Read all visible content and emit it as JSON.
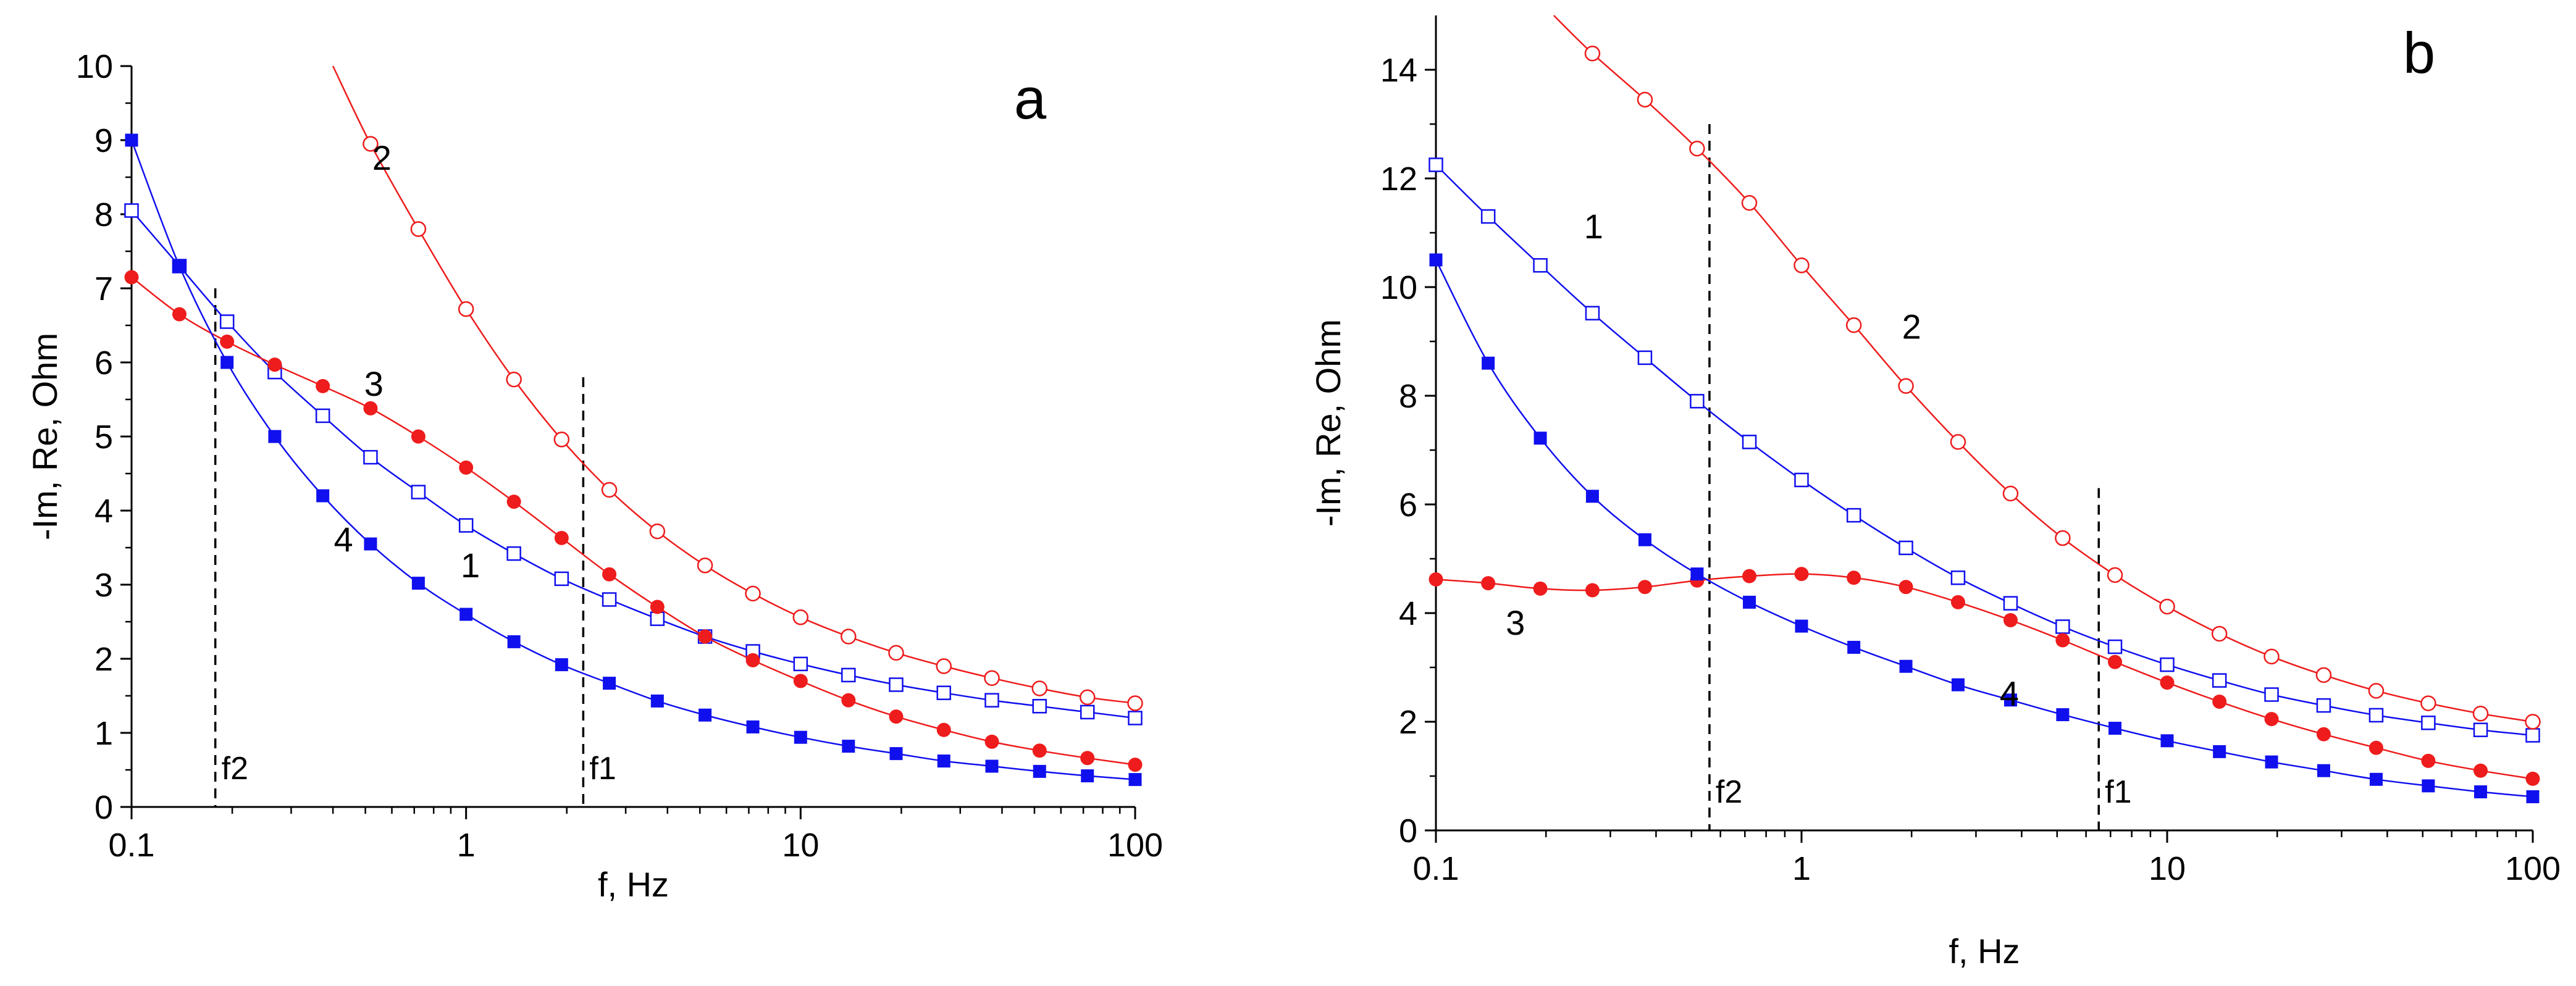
{
  "chart_data": [
    {
      "type": "line",
      "panel_label": "a",
      "xlabel": "f, Hz",
      "ylabel": "-Im, Re, Ohm",
      "x_scale": "log",
      "xlim": [
        0.1,
        100
      ],
      "ylim": [
        0,
        10
      ],
      "x_ticks": [
        0.1,
        1,
        10,
        100
      ],
      "x_tick_labels": [
        "0.1",
        "1",
        "10",
        "100"
      ],
      "y_ticks": [
        0,
        1,
        2,
        3,
        4,
        5,
        6,
        7,
        8,
        9,
        10
      ],
      "y_tick_labels": [
        "0",
        "1",
        "2",
        "3",
        "4",
        "5",
        "6",
        "7",
        "8",
        "9",
        "10"
      ],
      "grid": false,
      "legend": "none",
      "series": [
        {
          "label": "1",
          "color": "#1010ee",
          "marker": "square-open",
          "x": [
            0.1,
            0.139,
            0.193,
            0.268,
            0.373,
            0.518,
            0.72,
            1.0,
            1.39,
            1.93,
            2.68,
            3.73,
            5.18,
            7.2,
            10,
            13.9,
            19.3,
            26.8,
            37.3,
            51.8,
            72,
            100
          ],
          "y": [
            8.05,
            7.3,
            6.55,
            5.87,
            5.28,
            4.72,
            4.25,
            3.8,
            3.42,
            3.08,
            2.8,
            2.54,
            2.3,
            2.1,
            1.93,
            1.78,
            1.65,
            1.54,
            1.44,
            1.36,
            1.28,
            1.2
          ]
        },
        {
          "label": "2",
          "color": "#ee1c1c",
          "marker": "circle-open",
          "x": [
            0.518,
            0.72,
            1.0,
            1.39,
            1.93,
            2.68,
            3.73,
            5.18,
            7.2,
            10,
            13.9,
            19.3,
            26.8,
            37.3,
            51.8,
            72,
            100
          ],
          "y": [
            8.95,
            7.8,
            6.72,
            5.77,
            4.96,
            4.28,
            3.72,
            3.26,
            2.88,
            2.56,
            2.3,
            2.08,
            1.9,
            1.74,
            1.6,
            1.48,
            1.4
          ],
          "curve_start": [
            0.4,
            10
          ]
        },
        {
          "label": "3",
          "color": "#ee1c1c",
          "marker": "circle-filled",
          "x": [
            0.1,
            0.139,
            0.193,
            0.268,
            0.373,
            0.518,
            0.72,
            1.0,
            1.39,
            1.93,
            2.68,
            3.73,
            5.18,
            7.2,
            10,
            13.9,
            19.3,
            26.8,
            37.3,
            51.8,
            72,
            100
          ],
          "y": [
            7.15,
            6.65,
            6.28,
            5.97,
            5.68,
            5.38,
            5.0,
            4.58,
            4.12,
            3.63,
            3.14,
            2.7,
            2.3,
            1.98,
            1.7,
            1.44,
            1.22,
            1.04,
            0.88,
            0.76,
            0.66,
            0.57
          ]
        },
        {
          "label": "4",
          "color": "#1010ee",
          "marker": "square-filled",
          "x": [
            0.1,
            0.139,
            0.193,
            0.268,
            0.373,
            0.518,
            0.72,
            1.0,
            1.39,
            1.93,
            2.68,
            3.73,
            5.18,
            7.2,
            10,
            13.9,
            19.3,
            26.8,
            37.3,
            51.8,
            72,
            100
          ],
          "y": [
            9.0,
            7.3,
            6.0,
            5.0,
            4.2,
            3.55,
            3.02,
            2.6,
            2.23,
            1.92,
            1.67,
            1.43,
            1.24,
            1.08,
            0.94,
            0.82,
            0.72,
            0.62,
            0.55,
            0.48,
            0.42,
            0.37
          ]
        }
      ],
      "annotations": [
        {
          "text": "1",
          "series": "1",
          "at": [
            1.03,
            3.1
          ]
        },
        {
          "text": "2",
          "series": "2",
          "at": [
            0.56,
            8.6
          ]
        },
        {
          "text": "3",
          "series": "3",
          "at": [
            0.53,
            5.55
          ]
        },
        {
          "text": "4",
          "series": "4",
          "at": [
            0.43,
            3.45
          ]
        }
      ],
      "vlines": [
        {
          "label": "f2",
          "x": 0.178,
          "y_top": 7.0
        },
        {
          "label": "f1",
          "x": 2.24,
          "y_top": 5.8
        }
      ]
    },
    {
      "type": "line",
      "panel_label": "b",
      "xlabel": "f, Hz",
      "ylabel": "-Im, Re, Ohm",
      "x_scale": "log",
      "xlim": [
        0.1,
        100
      ],
      "ylim": [
        0,
        15
      ],
      "x_ticks": [
        0.1,
        1,
        10,
        100
      ],
      "x_tick_labels": [
        "0.1",
        "1",
        "10",
        "100"
      ],
      "y_ticks": [
        0,
        2,
        4,
        6,
        8,
        10,
        12,
        14
      ],
      "y_tick_labels": [
        "0",
        "2",
        "4",
        "6",
        "8",
        "10",
        "12",
        "14"
      ],
      "grid": false,
      "legend": "none",
      "series": [
        {
          "label": "1",
          "color": "#1010ee",
          "marker": "square-open",
          "x": [
            0.1,
            0.139,
            0.193,
            0.268,
            0.373,
            0.518,
            0.72,
            1.0,
            1.39,
            1.93,
            2.68,
            3.73,
            5.18,
            7.2,
            10,
            13.9,
            19.3,
            26.8,
            37.3,
            51.8,
            72,
            100
          ],
          "y": [
            12.25,
            11.3,
            10.4,
            9.52,
            8.7,
            7.9,
            7.15,
            6.45,
            5.8,
            5.2,
            4.65,
            4.18,
            3.75,
            3.38,
            3.05,
            2.76,
            2.5,
            2.3,
            2.12,
            1.98,
            1.85,
            1.75
          ]
        },
        {
          "label": "2",
          "color": "#ee1c1c",
          "marker": "circle-open",
          "x": [
            0.268,
            0.373,
            0.518,
            0.72,
            1.0,
            1.39,
            1.93,
            2.68,
            3.73,
            5.18,
            7.2,
            10,
            13.9,
            19.3,
            26.8,
            37.3,
            51.8,
            72,
            100
          ],
          "y": [
            14.3,
            13.45,
            12.55,
            11.55,
            10.4,
            9.3,
            8.18,
            7.15,
            6.2,
            5.38,
            4.7,
            4.12,
            3.62,
            3.2,
            2.86,
            2.57,
            2.34,
            2.15,
            2.0
          ],
          "curve_start": [
            0.21,
            15
          ]
        },
        {
          "label": "3",
          "color": "#ee1c1c",
          "marker": "circle-filled",
          "x": [
            0.1,
            0.139,
            0.193,
            0.268,
            0.373,
            0.518,
            0.72,
            1.0,
            1.39,
            1.93,
            2.68,
            3.73,
            5.18,
            7.2,
            10,
            13.9,
            19.3,
            26.8,
            37.3,
            51.8,
            72,
            100
          ],
          "y": [
            4.62,
            4.55,
            4.45,
            4.42,
            4.48,
            4.6,
            4.68,
            4.72,
            4.65,
            4.48,
            4.2,
            3.87,
            3.5,
            3.1,
            2.72,
            2.37,
            2.05,
            1.77,
            1.52,
            1.28,
            1.1,
            0.95
          ]
        },
        {
          "label": "4",
          "color": "#1010ee",
          "marker": "square-filled",
          "x": [
            0.1,
            0.139,
            0.193,
            0.268,
            0.373,
            0.518,
            0.72,
            1.0,
            1.39,
            1.93,
            2.68,
            3.73,
            5.18,
            7.2,
            10,
            13.9,
            19.3,
            26.8,
            37.3,
            51.8,
            72,
            100
          ],
          "y": [
            10.5,
            8.6,
            7.22,
            6.15,
            5.35,
            4.72,
            4.2,
            3.76,
            3.37,
            3.02,
            2.68,
            2.4,
            2.13,
            1.88,
            1.65,
            1.45,
            1.26,
            1.1,
            0.94,
            0.82,
            0.71,
            0.62
          ]
        }
      ],
      "annotations": [
        {
          "text": "1",
          "series": "1",
          "at": [
            0.27,
            10.9
          ]
        },
        {
          "text": "2",
          "series": "2",
          "at": [
            2.0,
            9.05
          ]
        },
        {
          "text": "3",
          "series": "3",
          "at": [
            0.165,
            3.6
          ]
        },
        {
          "text": "4",
          "series": "4",
          "at": [
            3.7,
            2.3
          ]
        }
      ],
      "vlines": [
        {
          "label": "f2",
          "x": 0.56,
          "y_top": 13.0
        },
        {
          "label": "f1",
          "x": 6.5,
          "y_top": 6.3
        }
      ]
    }
  ]
}
